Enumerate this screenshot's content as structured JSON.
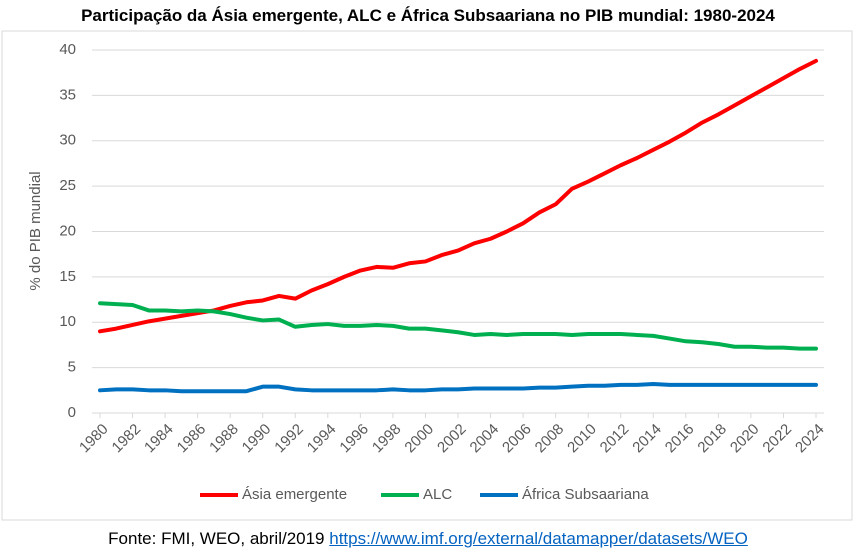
{
  "chart_data": {
    "type": "line",
    "title": "Participação da Ásia emergente, ALC e África Subsaariana no PIB mundial: 1980-2024",
    "y_label": "% do PIB mundial",
    "x": [
      1980,
      1981,
      1982,
      1983,
      1984,
      1985,
      1986,
      1987,
      1988,
      1989,
      1990,
      1991,
      1992,
      1993,
      1994,
      1995,
      1996,
      1997,
      1998,
      1999,
      2000,
      2001,
      2002,
      2003,
      2004,
      2005,
      2006,
      2007,
      2008,
      2009,
      2010,
      2011,
      2012,
      2013,
      2014,
      2015,
      2016,
      2017,
      2018,
      2019,
      2020,
      2021,
      2022,
      2023,
      2024
    ],
    "xlim": [
      1980,
      2024
    ],
    "xticks": [
      1980,
      1982,
      1984,
      1986,
      1988,
      1990,
      1992,
      1994,
      1996,
      1998,
      2000,
      2002,
      2004,
      2006,
      2008,
      2010,
      2012,
      2014,
      2016,
      2018,
      2020,
      2022,
      2024
    ],
    "ylim": [
      0,
      40
    ],
    "yticks": [
      0,
      5,
      10,
      15,
      20,
      25,
      30,
      35,
      40
    ],
    "grid": true,
    "legend": "bottom",
    "series": [
      {
        "name": "Ásia emergente",
        "color": "#ff0000",
        "values": [
          9.0,
          9.3,
          9.7,
          10.1,
          10.4,
          10.7,
          11.0,
          11.3,
          11.8,
          12.2,
          12.4,
          12.9,
          12.6,
          13.5,
          14.2,
          15.0,
          15.7,
          16.1,
          16.0,
          16.5,
          16.7,
          17.4,
          17.9,
          18.7,
          19.2,
          20.0,
          20.9,
          22.1,
          23.0,
          24.7,
          25.5,
          26.4,
          27.3,
          28.1,
          29.0,
          29.9,
          30.9,
          32.0,
          32.9,
          33.9,
          34.9,
          35.9,
          36.9,
          37.9,
          38.8
        ]
      },
      {
        "name": "ALC",
        "color": "#00b050",
        "values": [
          12.1,
          12.0,
          11.9,
          11.3,
          11.3,
          11.2,
          11.3,
          11.2,
          10.9,
          10.5,
          10.2,
          10.3,
          9.5,
          9.7,
          9.8,
          9.6,
          9.6,
          9.7,
          9.6,
          9.3,
          9.3,
          9.1,
          8.9,
          8.6,
          8.7,
          8.6,
          8.7,
          8.7,
          8.7,
          8.6,
          8.7,
          8.7,
          8.7,
          8.6,
          8.5,
          8.2,
          7.9,
          7.8,
          7.6,
          7.3,
          7.3,
          7.2,
          7.2,
          7.1,
          7.1
        ]
      },
      {
        "name": "África Subsaariana",
        "color": "#0070c0",
        "values": [
          2.5,
          2.6,
          2.6,
          2.5,
          2.5,
          2.4,
          2.4,
          2.4,
          2.4,
          2.4,
          2.9,
          2.9,
          2.6,
          2.5,
          2.5,
          2.5,
          2.5,
          2.5,
          2.6,
          2.5,
          2.5,
          2.6,
          2.6,
          2.7,
          2.7,
          2.7,
          2.7,
          2.8,
          2.8,
          2.9,
          3.0,
          3.0,
          3.1,
          3.1,
          3.2,
          3.1,
          3.1,
          3.1,
          3.1,
          3.1,
          3.1,
          3.1,
          3.1,
          3.1,
          3.1
        ]
      }
    ]
  },
  "footer": {
    "source": "Fonte: FMI, WEO, abril/2019",
    "link": "https://www.imf.org/external/datamapper/datasets/WEO"
  }
}
